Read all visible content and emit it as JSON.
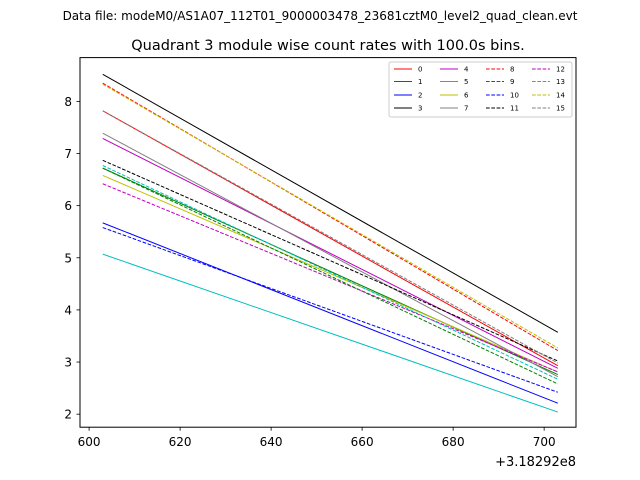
{
  "header": {
    "text": "Data file: modeM0/AS1A07_112T01_9000003478_23681cztM0_level2_quad_clean.evt"
  },
  "chart_data": {
    "type": "line",
    "title": "Quadrant 3 module wise count rates with 100.0s bins.",
    "xlabel": "",
    "ylabel": "",
    "x_offset_label": "+3.18292e8",
    "xlim": [
      598,
      707
    ],
    "ylim": [
      1.75,
      8.84
    ],
    "xticks": [
      600,
      620,
      640,
      660,
      680,
      700
    ],
    "yticks": [
      2,
      3,
      4,
      5,
      6,
      7,
      8
    ],
    "grid": false,
    "legend": {
      "position": "top-right",
      "columns": 4
    },
    "x": [
      603,
      703
    ],
    "series": [
      {
        "name": "0",
        "color": "#ff0000",
        "dash": "solid",
        "values": [
          7.82,
          2.93
        ]
      },
      {
        "name": "1",
        "color": "#008000",
        "dash": "solid",
        "values": [
          6.72,
          2.76
        ]
      },
      {
        "name": "2",
        "color": "#0000ff",
        "dash": "solid",
        "values": [
          5.67,
          2.21
        ]
      },
      {
        "name": "3",
        "color": "#000000",
        "dash": "solid",
        "values": [
          8.52,
          3.57
        ]
      },
      {
        "name": "4",
        "color": "#bf00bf",
        "dash": "solid",
        "values": [
          7.29,
          2.88
        ]
      },
      {
        "name": "5",
        "color": "#00bfbf",
        "dash": "solid",
        "values": [
          5.07,
          2.04
        ]
      },
      {
        "name": "6",
        "color": "#bfbf00",
        "dash": "solid",
        "values": [
          6.58,
          2.81
        ]
      },
      {
        "name": "7",
        "color": "#808080",
        "dash": "solid",
        "values": [
          7.39,
          2.72
        ]
      },
      {
        "name": "8",
        "color": "#ff0000",
        "dash": "dashed",
        "values": [
          8.35,
          3.22
        ]
      },
      {
        "name": "9",
        "color": "#008000",
        "dash": "dashed",
        "values": [
          6.72,
          2.58
        ]
      },
      {
        "name": "10",
        "color": "#0000ff",
        "dash": "dashed",
        "values": [
          5.58,
          2.42
        ]
      },
      {
        "name": "11",
        "color": "#000000",
        "dash": "dashed",
        "values": [
          6.87,
          3.02
        ]
      },
      {
        "name": "12",
        "color": "#bf00bf",
        "dash": "dashed",
        "values": [
          6.42,
          2.81
        ]
      },
      {
        "name": "13",
        "color": "#00bfbf",
        "dash": "dashed",
        "values": [
          6.77,
          2.67
        ]
      },
      {
        "name": "14",
        "color": "#bfbf00",
        "dash": "dashed",
        "values": [
          8.33,
          3.27
        ]
      },
      {
        "name": "15",
        "color": "#808080",
        "dash": "dashed",
        "values": [
          7.82,
          2.98
        ]
      }
    ]
  }
}
